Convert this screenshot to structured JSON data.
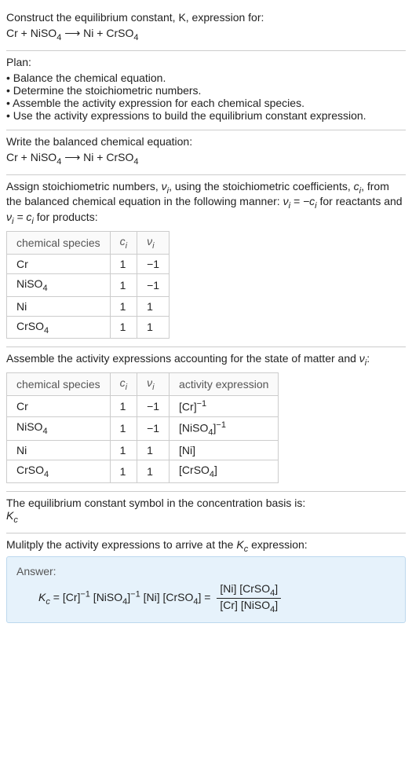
{
  "intro": {
    "line1": "Construct the equilibrium constant, K, expression for:",
    "equation_left": "Cr + NiSO",
    "equation_sub1": "4",
    "arrow": " ⟶ ",
    "equation_right1": "Ni + CrSO",
    "equation_sub2": "4"
  },
  "plan": {
    "heading": "Plan:",
    "items": [
      "• Balance the chemical equation.",
      "• Determine the stoichiometric numbers.",
      "• Assemble the activity expression for each chemical species.",
      "• Use the activity expressions to build the equilibrium constant expression."
    ]
  },
  "balanced": {
    "heading": "Write the balanced chemical equation:"
  },
  "stoich": {
    "text_a": "Assign stoichiometric numbers, ",
    "nu_i": "ν",
    "sub_i": "i",
    "text_b": ", using the stoichiometric coefficients, ",
    "c_i": "c",
    "text_c": ", from the balanced chemical equation in the following manner: ",
    "rel1": "ν",
    "rel1b": " = −c",
    "text_d": " for reactants and ",
    "rel2": "ν",
    "rel2b": " = c",
    "text_e": " for products:",
    "table": {
      "headers": [
        "chemical species",
        "c",
        "ν"
      ],
      "header_sub": "i",
      "rows": [
        [
          "Cr",
          "1",
          "−1"
        ],
        [
          "NiSO4",
          "1",
          "−1"
        ],
        [
          "Ni",
          "1",
          "1"
        ],
        [
          "CrSO4",
          "1",
          "1"
        ]
      ]
    }
  },
  "activity": {
    "text_a": "Assemble the activity expressions accounting for the state of matter and ",
    "text_b": ":",
    "table": {
      "headers": [
        "chemical species",
        "c",
        "ν",
        "activity expression"
      ],
      "header_sub": "i",
      "rows": [
        {
          "sp": "Cr",
          "c": "1",
          "v": "−1",
          "act_base": "[Cr]",
          "act_sup": "−1"
        },
        {
          "sp": "NiSO4",
          "c": "1",
          "v": "−1",
          "act_base": "[NiSO4]",
          "act_sup": "−1"
        },
        {
          "sp": "Ni",
          "c": "1",
          "v": "1",
          "act_base": "[Ni]",
          "act_sup": ""
        },
        {
          "sp": "CrSO4",
          "c": "1",
          "v": "1",
          "act_base": "[CrSO4]",
          "act_sup": ""
        }
      ]
    }
  },
  "symbol": {
    "line1": "The equilibrium constant symbol in the concentration basis is:",
    "K": "K",
    "Ksub": "c"
  },
  "mult": {
    "line1_a": "Mulitply the activity expressions to arrive at the ",
    "line1_b": " expression:"
  },
  "answer": {
    "label": "Answer:",
    "lhs_K": "K",
    "lhs_Ksub": "c",
    "eq": " = ",
    "t1": "[Cr]",
    "t1sup": "−1",
    "t2": " [NiSO4]",
    "t2sup": "−1",
    "t3": " [Ni] [CrSO4] = ",
    "num": "[Ni] [CrSO4]",
    "den": "[Cr] [NiSO4]"
  },
  "style": {
    "accent_bg": "#e6f2fb",
    "accent_border": "#bcd8ee",
    "divider": "#cccccc",
    "font_size": 14
  }
}
